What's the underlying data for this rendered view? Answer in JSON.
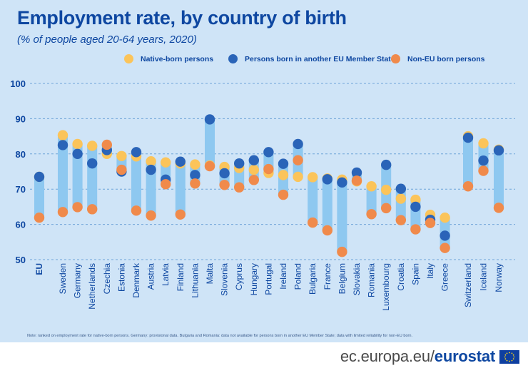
{
  "header": {
    "title": "Employment rate, by country of birth",
    "subtitle": "(% of people aged 20-64 years, 2020)"
  },
  "legend": [
    {
      "label": "Native-born persons",
      "color": "#fbc45a"
    },
    {
      "label": "Persons born in another EU Member State",
      "color": "#2a64b8"
    },
    {
      "label": "Non-EU born persons",
      "color": "#f08a4b"
    }
  ],
  "colors": {
    "bar": "#8ec8f0",
    "grid": "#6fa3d8",
    "axis_text": "#0e47a1"
  },
  "note": "Note: ranked on employment rate for native-born persons. Germany: provisional data. Bulgaria and Romania: data not available for persons born in another EU Member State; data with limited reliability for non-EU born.",
  "footer": {
    "site": "ec.europa.eu/",
    "brand": "eurostat"
  },
  "chart_data": {
    "type": "dot-range",
    "title": "Employment rate, by country of birth",
    "subtitle": "(% of people aged 20-64 years, 2020)",
    "ylim": [
      50,
      100
    ],
    "yticks": [
      50,
      60,
      70,
      80,
      90,
      100
    ],
    "categories": [
      "EU",
      "Sweden",
      "Germany",
      "Netherlands",
      "Czechia",
      "Estonia",
      "Denmark",
      "Austria",
      "Latvia",
      "Finland",
      "Lithuania",
      "Malta",
      "Slovenia",
      "Cyprus",
      "Hungary",
      "Portugal",
      "Ireland",
      "Poland",
      "Bulgaria",
      "France",
      "Belgium",
      "Slovakia",
      "Romania",
      "Luxembourg",
      "Croatia",
      "Spain",
      "Italy",
      "Greece",
      "Switzerland",
      "Iceland",
      "Norway"
    ],
    "series": [
      {
        "name": "Native-born persons",
        "values": [
          73.5,
          85.3,
          82.8,
          82.3,
          80.0,
          79.4,
          79.3,
          77.9,
          77.6,
          77.3,
          77.0,
          76.7,
          76.3,
          76.0,
          75.5,
          74.6,
          74.0,
          73.5,
          73.4,
          73.0,
          72.7,
          72.2,
          70.8,
          69.8,
          67.3,
          67.0,
          62.7,
          61.9,
          85.0,
          83.0,
          81.2
        ]
      },
      {
        "name": "Persons born in another EU Member State",
        "values": [
          73.5,
          82.5,
          80.0,
          77.3,
          81.1,
          75.0,
          80.5,
          75.5,
          72.7,
          77.8,
          74.0,
          89.8,
          74.5,
          77.3,
          78.2,
          80.5,
          77.2,
          82.8,
          null,
          72.8,
          71.9,
          74.7,
          null,
          76.9,
          70.1,
          65.0,
          61.3,
          56.8,
          84.6,
          78.1,
          81.0
        ]
      },
      {
        "name": "Non-EU born persons",
        "values": [
          61.9,
          63.5,
          64.9,
          64.3,
          82.6,
          75.5,
          63.9,
          62.5,
          71.4,
          62.8,
          71.6,
          76.5,
          71.2,
          70.5,
          72.6,
          75.7,
          68.4,
          78.2,
          60.5,
          58.3,
          52.2,
          72.4,
          62.9,
          64.6,
          61.2,
          58.6,
          60.4,
          53.3,
          70.8,
          75.2,
          64.7
        ]
      }
    ]
  }
}
